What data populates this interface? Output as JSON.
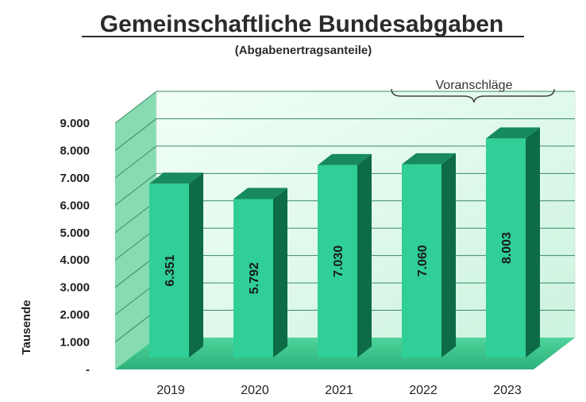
{
  "chart_data": {
    "type": "bar",
    "title": "Gemeinschaftliche Bundesabgaben",
    "subtitle": "(Abgabenertragsanteile)",
    "ylabel": "Tausende",
    "xlabel": "",
    "categories": [
      "2019",
      "2020",
      "2021",
      "2022",
      "2023"
    ],
    "values": [
      6351,
      5792,
      7030,
      7060,
      8003
    ],
    "value_labels": [
      "6.351",
      "5.792",
      "7.030",
      "7.060",
      "8.003"
    ],
    "yticks": [
      "-",
      "1.000",
      "2.000",
      "3.000",
      "4.000",
      "5.000",
      "6.000",
      "7.000",
      "8.000",
      "9.000"
    ],
    "ylim": [
      0,
      9000
    ],
    "grid": true,
    "style": "3d",
    "annotation": {
      "text": "Voranschläge",
      "covers": [
        "2022",
        "2023"
      ]
    },
    "colors": {
      "bar_front": "#2fcf97",
      "bar_side": "#0d6b47",
      "bar_top": "#178a5e",
      "wall": "#e4fbee",
      "side_wall": "#7fd7a8",
      "floor": "#3bc48a"
    }
  }
}
